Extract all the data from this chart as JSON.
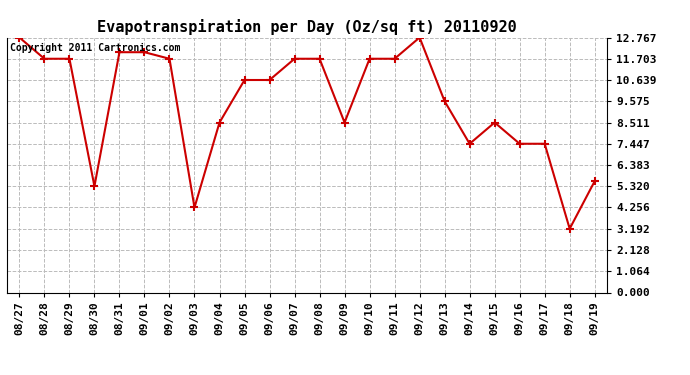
{
  "title": "Evapotranspiration per Day (Oz/sq ft) 20110920",
  "copyright_text": "Copyright 2011 Cartronics.com",
  "x_labels": [
    "08/27",
    "08/28",
    "08/29",
    "08/30",
    "08/31",
    "09/01",
    "09/02",
    "09/03",
    "09/04",
    "09/05",
    "09/06",
    "09/07",
    "09/08",
    "09/09",
    "09/10",
    "09/11",
    "09/12",
    "09/13",
    "09/14",
    "09/15",
    "09/16",
    "09/17",
    "09/18",
    "09/19"
  ],
  "y_values": [
    12.767,
    11.703,
    11.703,
    5.32,
    12.031,
    12.031,
    11.703,
    4.256,
    8.511,
    10.639,
    10.639,
    11.703,
    11.703,
    8.511,
    11.703,
    11.703,
    12.767,
    9.575,
    7.447,
    8.511,
    7.447,
    7.447,
    3.192,
    5.575
  ],
  "y_ticks": [
    0.0,
    1.064,
    2.128,
    3.192,
    4.256,
    5.32,
    6.383,
    7.447,
    8.511,
    9.575,
    10.639,
    11.703,
    12.767
  ],
  "line_color": "#cc0000",
  "marker": "+",
  "marker_size": 6,
  "marker_edge_width": 1.5,
  "line_width": 1.5,
  "background_color": "#ffffff",
  "grid_color": "#bbbbbb",
  "ylim": [
    0.0,
    12.767
  ],
  "title_fontsize": 11,
  "tick_fontsize": 8,
  "copyright_fontsize": 7
}
